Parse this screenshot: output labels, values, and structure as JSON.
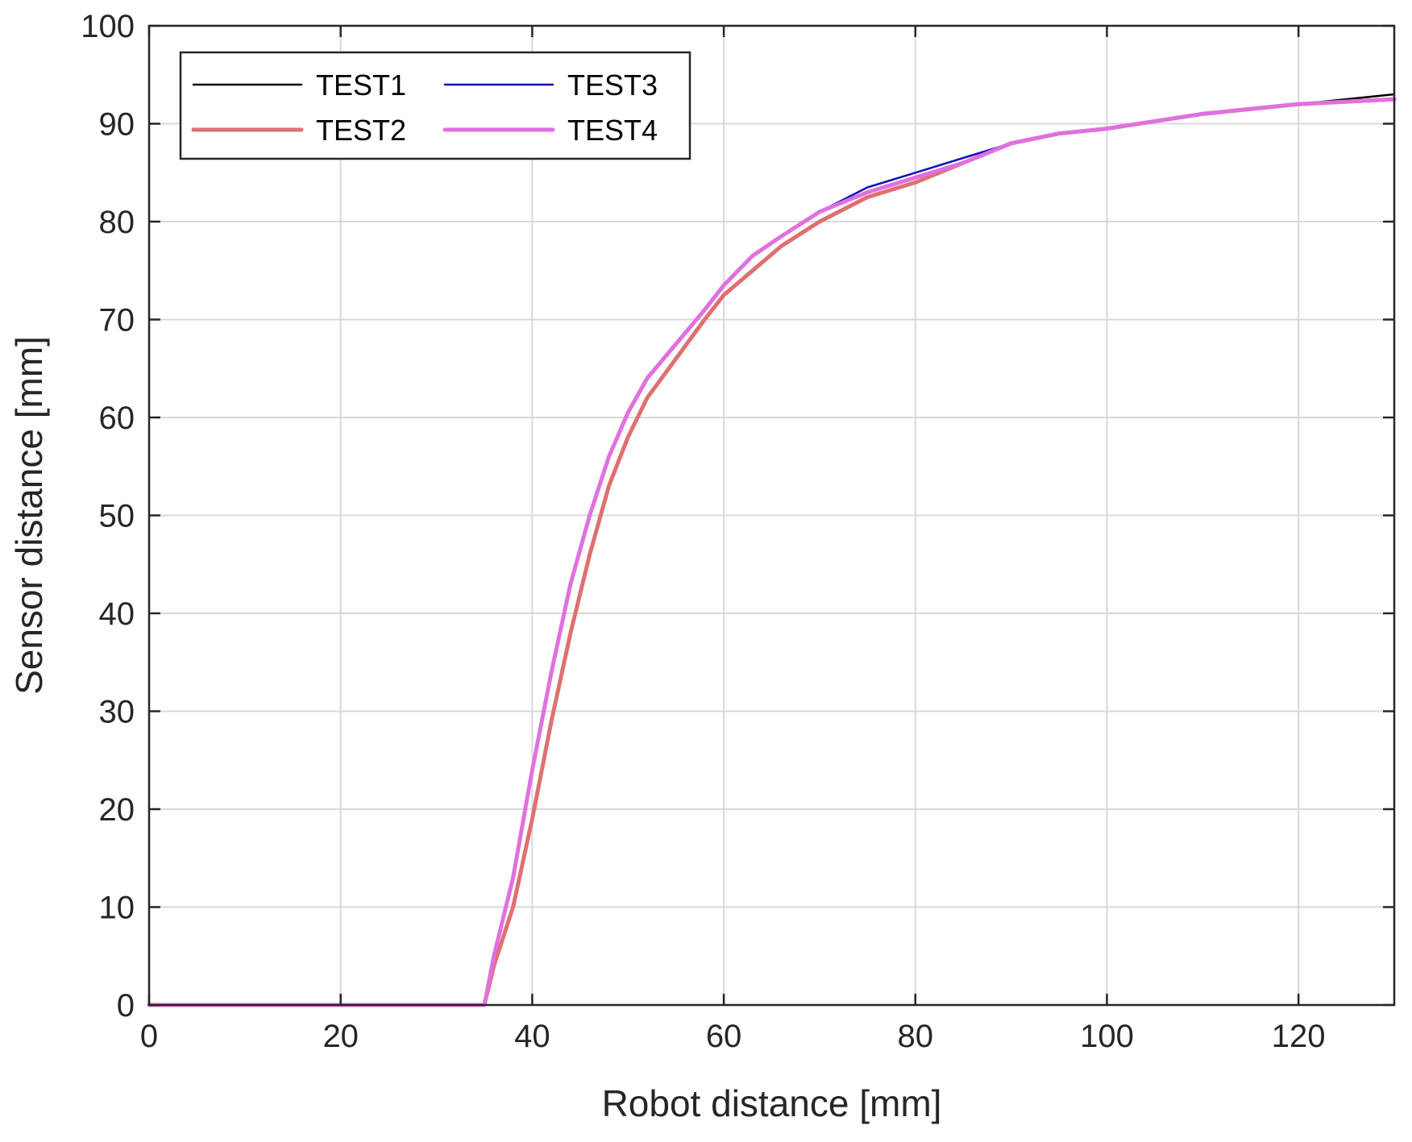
{
  "chart_data": {
    "type": "line",
    "title": "",
    "xlabel": "Robot distance [mm]",
    "ylabel": "Sensor distance [mm]",
    "xlim": [
      0,
      130
    ],
    "ylim": [
      0,
      100
    ],
    "xticks": [
      0,
      20,
      40,
      60,
      80,
      100,
      120
    ],
    "yticks": [
      0,
      10,
      20,
      30,
      40,
      50,
      60,
      70,
      80,
      90,
      100
    ],
    "grid": true,
    "legend_position": "top-left",
    "legend_columns": 2,
    "series": [
      {
        "name": "TEST1",
        "color": "#000000",
        "x": [
          0,
          35,
          36,
          38,
          40,
          42,
          44,
          46,
          48,
          50,
          52,
          55,
          58,
          60,
          63,
          66,
          70,
          75,
          80,
          85,
          90,
          95,
          100,
          110,
          120,
          130
        ],
        "y": [
          0,
          0,
          4,
          10,
          19,
          29,
          38,
          46,
          53,
          58,
          62,
          66,
          70,
          72.5,
          75,
          77.5,
          80,
          82.5,
          84,
          86,
          88,
          89,
          89.5,
          91,
          92,
          93
        ]
      },
      {
        "name": "TEST2",
        "color": "#e07070",
        "x": [
          0,
          35,
          36,
          38,
          40,
          42,
          44,
          46,
          48,
          50,
          52,
          55,
          58,
          60,
          63,
          66,
          70,
          75,
          80,
          85,
          90,
          95,
          100,
          110,
          120,
          130
        ],
        "y": [
          0,
          0,
          4,
          10,
          19,
          29,
          38,
          46,
          53,
          58,
          62,
          66,
          70,
          72.5,
          75,
          77.5,
          80,
          82.5,
          84,
          86,
          88,
          89,
          89.5,
          91,
          92,
          92.5
        ]
      },
      {
        "name": "TEST3",
        "color": "#1010c0",
        "x": [
          0,
          35,
          36,
          38,
          40,
          42,
          44,
          46,
          48,
          50,
          52,
          55,
          58,
          60,
          63,
          66,
          70,
          75,
          80,
          85,
          90,
          95,
          100,
          110,
          120,
          130
        ],
        "y": [
          0,
          0,
          5,
          13,
          24,
          34,
          43,
          50,
          56,
          60.5,
          64,
          67.5,
          71,
          73.5,
          76.5,
          78.5,
          81,
          83.5,
          85,
          86.5,
          88,
          89,
          89.5,
          91,
          92,
          92.5
        ]
      },
      {
        "name": "TEST4",
        "color": "#e070e0",
        "x": [
          0,
          35,
          36,
          38,
          40,
          42,
          44,
          46,
          48,
          50,
          52,
          55,
          58,
          60,
          63,
          66,
          70,
          75,
          80,
          85,
          90,
          95,
          100,
          110,
          120,
          130
        ],
        "y": [
          0,
          0,
          5,
          13,
          24,
          34,
          43,
          50,
          56,
          60.5,
          64,
          67.5,
          71,
          73.5,
          76.5,
          78.5,
          81,
          83,
          84.5,
          86,
          88,
          89,
          89.5,
          91,
          92,
          92.5
        ]
      }
    ]
  }
}
